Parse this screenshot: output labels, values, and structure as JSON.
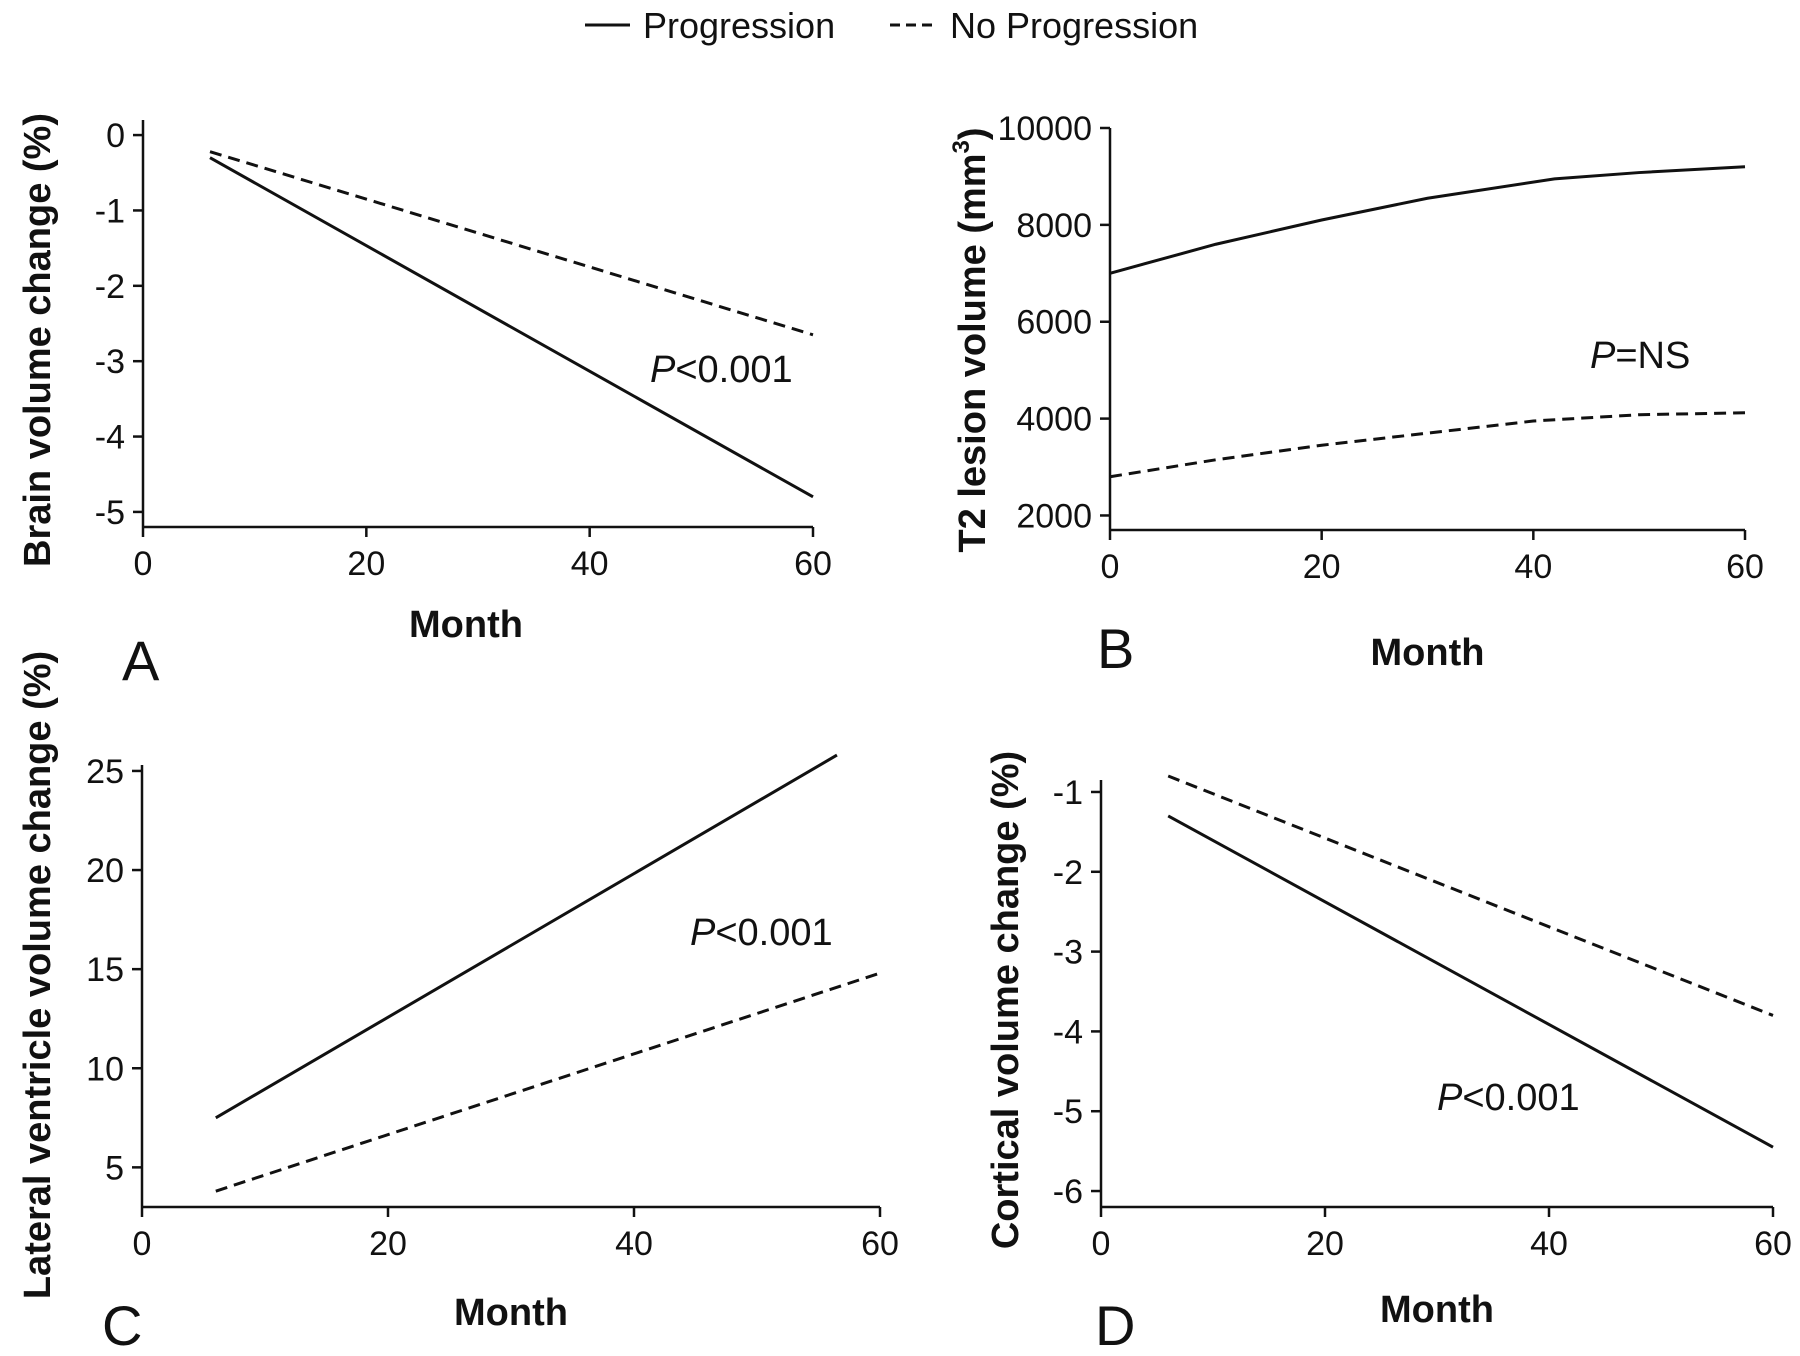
{
  "legend": {
    "items": [
      {
        "label": "Progression",
        "style": "solid"
      },
      {
        "label": "No Progression",
        "style": "dashed"
      }
    ]
  },
  "colors": {
    "line": "#111111",
    "background": "#ffffff"
  },
  "chart_data": [
    {
      "id": "A",
      "type": "line",
      "panel_label": "A",
      "xlabel": "Month",
      "ylabel": "Brain volume change (%)",
      "xlim": [
        0,
        60
      ],
      "ylim": [
        -5.2,
        0.2
      ],
      "xticks": [
        0,
        20,
        40,
        60
      ],
      "yticks": [
        0,
        -1,
        -2,
        -3,
        -4,
        -5
      ],
      "annotation": {
        "italic": "P",
        "rest": "<0.001"
      },
      "series": [
        {
          "name": "Progression",
          "style": "solid",
          "x": [
            6,
            60
          ],
          "y": [
            -0.3,
            -4.8
          ]
        },
        {
          "name": "No Progression",
          "style": "dashed",
          "x": [
            6,
            60
          ],
          "y": [
            -0.22,
            -2.65
          ]
        }
      ]
    },
    {
      "id": "B",
      "type": "line",
      "panel_label": "B",
      "xlabel": "Month",
      "ylabel": "T2 lesion volume (mm³)",
      "xlim": [
        0,
        60
      ],
      "ylim": [
        1700,
        10000
      ],
      "xticks": [
        0,
        20,
        40,
        60
      ],
      "yticks": [
        2000,
        4000,
        6000,
        8000,
        10000
      ],
      "annotation": {
        "italic": "P",
        "rest": "=NS"
      },
      "series": [
        {
          "name": "Progression",
          "style": "solid",
          "x": [
            0,
            10,
            20,
            30,
            42,
            50,
            60
          ],
          "y": [
            7000,
            7600,
            8100,
            8550,
            8950,
            9080,
            9200
          ]
        },
        {
          "name": "No Progression",
          "style": "dashed",
          "x": [
            0,
            10,
            20,
            30,
            40,
            50,
            60
          ],
          "y": [
            2800,
            3150,
            3450,
            3700,
            3950,
            4080,
            4120
          ]
        }
      ]
    },
    {
      "id": "C",
      "type": "line",
      "panel_label": "C",
      "xlabel": "Month",
      "ylabel": "Lateral ventricle volume change (%)",
      "xlim": [
        0,
        60
      ],
      "ylim": [
        3,
        25.3
      ],
      "xticks": [
        0,
        20,
        40,
        60
      ],
      "yticks": [
        5,
        10,
        15,
        20,
        25
      ],
      "annotation": {
        "italic": "P",
        "rest": "<0.001"
      },
      "series": [
        {
          "name": "Progression",
          "style": "solid",
          "x": [
            6,
            56.5
          ],
          "y": [
            7.5,
            25.8
          ]
        },
        {
          "name": "No Progression",
          "style": "dashed",
          "x": [
            6,
            60
          ],
          "y": [
            3.8,
            14.8
          ]
        }
      ]
    },
    {
      "id": "D",
      "type": "line",
      "panel_label": "D",
      "xlabel": "Month",
      "ylabel": "Cortical volume change (%)",
      "xlim": [
        0,
        60
      ],
      "ylim": [
        -6.2,
        -0.85
      ],
      "xticks": [
        0,
        20,
        40,
        60
      ],
      "yticks": [
        -1,
        -2,
        -3,
        -4,
        -5,
        -6
      ],
      "annotation": {
        "italic": "P",
        "rest": "<0.001"
      },
      "series": [
        {
          "name": "Progression",
          "style": "solid",
          "x": [
            6,
            60
          ],
          "y": [
            -1.3,
            -5.45
          ]
        },
        {
          "name": "No Progression",
          "style": "dashed",
          "x": [
            6,
            60
          ],
          "y": [
            -0.8,
            -3.8
          ]
        }
      ]
    }
  ]
}
